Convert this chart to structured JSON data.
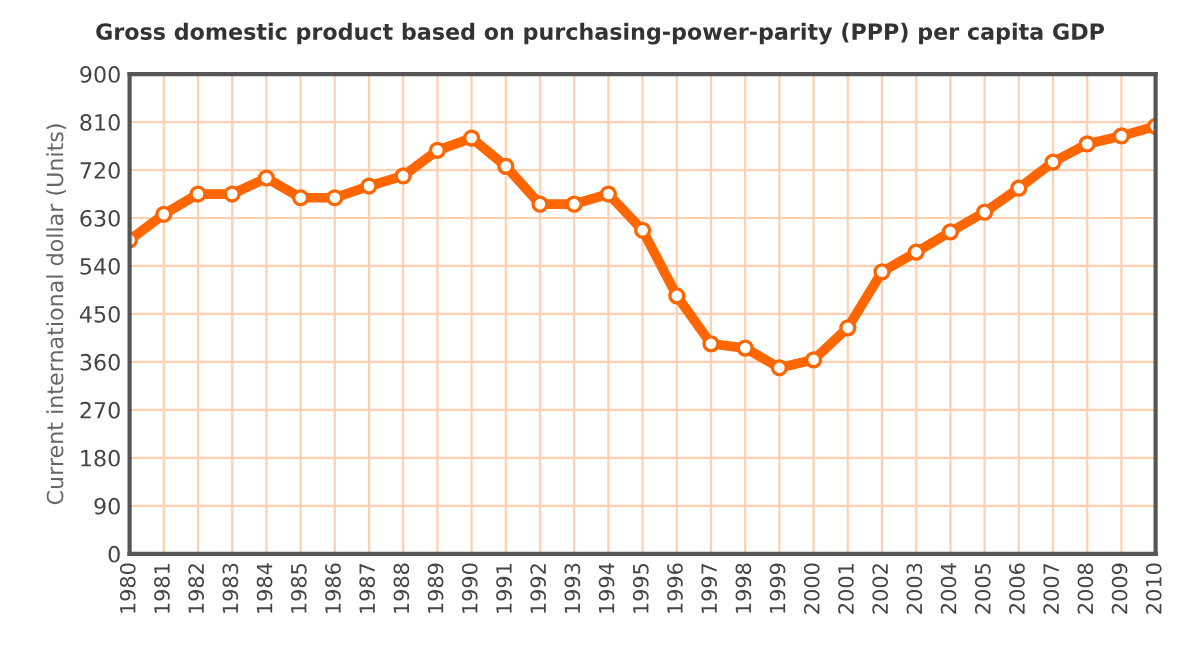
{
  "chart_data": {
    "type": "line",
    "title": "Gross domestic product based on purchasing-power-parity (PPP) per capita GDP",
    "ylabel": "Current international dollar (Units)",
    "categories": [
      "1980",
      "1981",
      "1982",
      "1983",
      "1984",
      "1985",
      "1986",
      "1987",
      "1988",
      "1989",
      "1990",
      "1991",
      "1992",
      "1993",
      "1994",
      "1995",
      "1996",
      "1997",
      "1998",
      "1999",
      "2000",
      "2001",
      "2002",
      "2003",
      "2004",
      "2005",
      "2006",
      "2007",
      "2008",
      "2009",
      "2010"
    ],
    "series": [
      {
        "color": "#ff6600",
        "values": [
          589,
          637,
          675,
          675,
          705,
          668,
          668,
          690,
          709,
          757,
          780,
          727,
          656,
          656,
          675,
          607,
          484,
          394,
          386,
          349,
          364,
          424,
          529,
          566,
          604,
          641,
          686,
          735,
          769,
          784,
          802
        ]
      }
    ],
    "ylim": [
      0,
      900
    ],
    "yticks": [
      0,
      90,
      180,
      270,
      360,
      450,
      540,
      630,
      720,
      810,
      900
    ],
    "grid": true,
    "marker": "circle",
    "line_style": "solid"
  }
}
